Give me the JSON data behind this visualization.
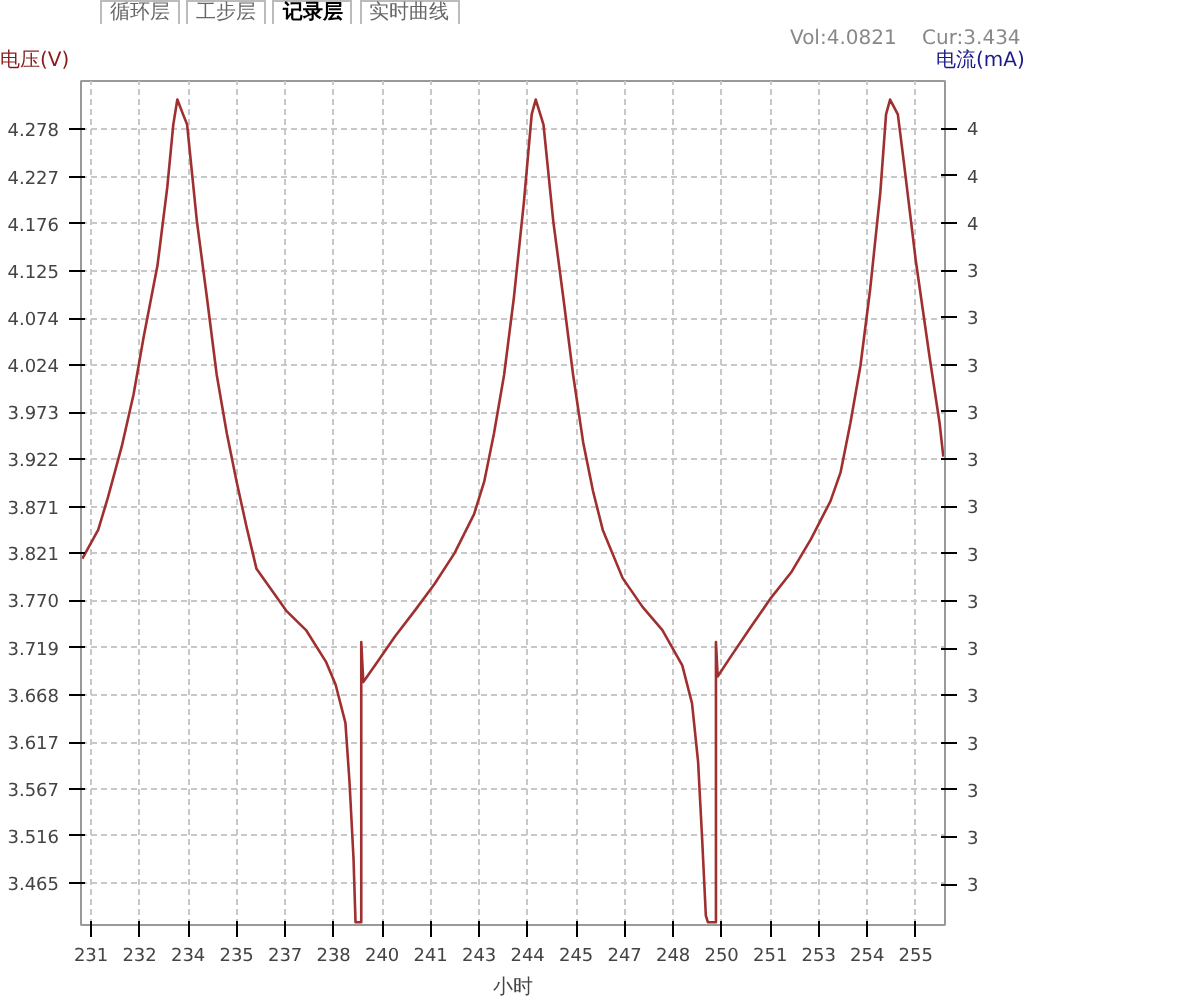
{
  "chart_data": {
    "type": "line",
    "ylabel": "电压(V)",
    "y2label": "电流(mA)",
    "xlabel": "小时",
    "annotations": [
      "循环层",
      "工步层",
      "记录层",
      "实时曲线",
      "Vol:4.0821",
      "Cur:3.434"
    ],
    "x": [
      230.74,
      231.21,
      231.5,
      231.91,
      232.26,
      232.56,
      232.97,
      233.26,
      233.44,
      233.56,
      233.73,
      233.85,
      234.14,
      234.44,
      234.73,
      235.03,
      235.32,
      235.61,
      235.91,
      236.79,
      237.38,
      237.97,
      238.26,
      238.55,
      238.67,
      238.79,
      238.85,
      239.02,
      239.02,
      239.08,
      239.43,
      240.02,
      240.61,
      241.2,
      241.79,
      242.37,
      242.67,
      242.96,
      243.26,
      243.55,
      243.85,
      244.08,
      244.2,
      244.43,
      244.72,
      245.02,
      245.31,
      245.61,
      245.9,
      246.19,
      246.78,
      247.37,
      247.96,
      248.55,
      248.84,
      249.02,
      249.14,
      249.25,
      249.31,
      249.55,
      249.55,
      249.6,
      250.02,
      250.6,
      251.19,
      251.78,
      252.37,
      252.95,
      253.25,
      253.54,
      253.84,
      254.13,
      254.43,
      254.6,
      254.72,
      254.95,
      255.13,
      255.48,
      255.89,
      256.19,
      256.3
    ],
    "series": [
      {
        "color": "#a03030",
        "values": [
          3.815,
          3.846,
          3.881,
          3.936,
          3.992,
          4.054,
          4.131,
          4.215,
          4.283,
          4.31,
          4.294,
          4.283,
          4.179,
          4.096,
          4.013,
          3.95,
          3.898,
          3.85,
          3.804,
          3.759,
          3.738,
          3.704,
          3.679,
          3.638,
          3.575,
          3.492,
          3.423,
          3.423,
          3.725,
          3.682,
          3.7,
          3.731,
          3.759,
          3.788,
          3.821,
          3.863,
          3.898,
          3.95,
          4.013,
          4.096,
          4.2,
          4.294,
          4.31,
          4.283,
          4.179,
          4.096,
          4.013,
          3.94,
          3.888,
          3.846,
          3.794,
          3.763,
          3.738,
          3.7,
          3.659,
          3.596,
          3.513,
          3.43,
          3.423,
          3.423,
          3.725,
          3.688,
          3.711,
          3.742,
          3.773,
          3.8,
          3.836,
          3.877,
          3.908,
          3.961,
          4.023,
          4.106,
          4.21,
          4.294,
          4.31,
          4.294,
          4.242,
          4.137,
          4.033,
          3.961,
          3.925
        ]
      }
    ],
    "xlim": [
      230.7,
      256.35
    ],
    "xticks": [
      {
        "value": 231,
        "label": "231"
      },
      {
        "value": 232.44,
        "label": "232"
      },
      {
        "value": 233.88,
        "label": "234"
      },
      {
        "value": 235.32,
        "label": "235"
      },
      {
        "value": 236.76,
        "label": "237"
      },
      {
        "value": 238.2,
        "label": "238"
      },
      {
        "value": 239.64,
        "label": "240"
      },
      {
        "value": 241.08,
        "label": "241"
      },
      {
        "value": 242.52,
        "label": "243"
      },
      {
        "value": 243.96,
        "label": "244"
      },
      {
        "value": 245.4,
        "label": "245"
      },
      {
        "value": 246.84,
        "label": "247"
      },
      {
        "value": 248.28,
        "label": "248"
      },
      {
        "value": 249.72,
        "label": "250"
      },
      {
        "value": 251.16,
        "label": "251"
      },
      {
        "value": 252.6,
        "label": "253"
      },
      {
        "value": 254.04,
        "label": "254"
      },
      {
        "value": 255.48,
        "label": "255"
      }
    ],
    "ylim": [
      3.42,
      4.33
    ],
    "yticks": [
      3.465,
      3.516,
      3.567,
      3.617,
      3.668,
      3.719,
      {
        "value": 3.77,
        "label": "3.770"
      },
      3.821,
      3.871,
      3.922,
      3.973,
      4.024,
      4.074,
      4.125,
      4.176,
      4.227,
      4.278
    ],
    "y2lim": [
      2.47,
      3.72
    ],
    "y2ticks": [
      {
        "value": 3.65,
        "label": "4"
      },
      {
        "value": 3.58,
        "label": "4"
      },
      {
        "value": 3.51,
        "label": "4"
      },
      {
        "value": 3.44,
        "label": "3"
      },
      {
        "value": 3.37,
        "label": "3"
      },
      {
        "value": 3.3,
        "label": "3"
      },
      {
        "value": 3.23,
        "label": "3"
      },
      {
        "value": 3.16,
        "label": "3"
      },
      {
        "value": 3.09,
        "label": "3"
      },
      {
        "value": 3.02,
        "label": "3"
      },
      {
        "value": 2.95,
        "label": "3"
      },
      {
        "value": 2.88,
        "label": "3"
      },
      {
        "value": 2.81,
        "label": "3"
      },
      {
        "value": 2.74,
        "label": "3"
      },
      {
        "value": 2.67,
        "label": "3"
      },
      {
        "value": 2.6,
        "label": "3"
      },
      {
        "value": 2.53,
        "label": "3"
      }
    ],
    "grid": true,
    "marker": "none",
    "line_style": "solid"
  }
}
